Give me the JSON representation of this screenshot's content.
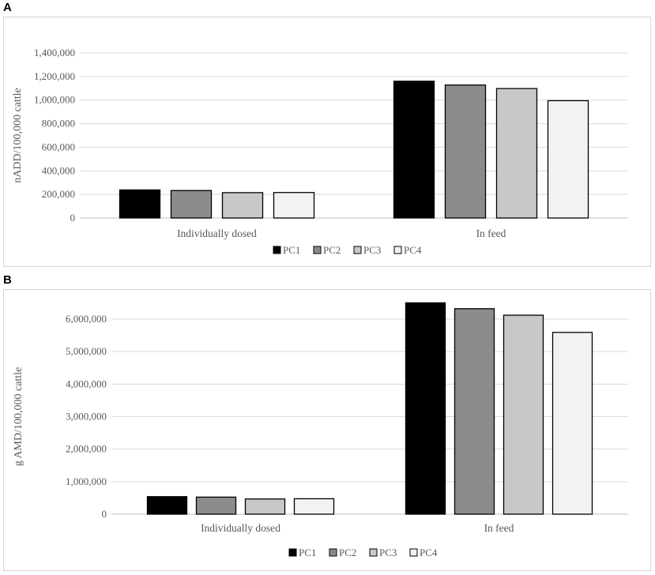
{
  "panels": [
    {
      "letter": "A"
    },
    {
      "letter": "B"
    }
  ],
  "chart_data": [
    {
      "type": "bar",
      "categories": [
        "Individually dosed",
        "In feed"
      ],
      "series": [
        {
          "name": "PC1",
          "values": [
            238000,
            1160000
          ]
        },
        {
          "name": "PC2",
          "values": [
            233000,
            1128000
          ]
        },
        {
          "name": "PC3",
          "values": [
            215000,
            1098000
          ]
        },
        {
          "name": "PC4",
          "values": [
            216000,
            995000
          ]
        }
      ],
      "title": "",
      "xlabel": "",
      "ylabel": "nADD/100,000 cattle",
      "ylim": [
        0,
        1400000
      ],
      "yticks": [
        0,
        200000,
        400000,
        600000,
        800000,
        1000000,
        1200000,
        1400000
      ],
      "ytick_labels": [
        "0",
        "200,000",
        "400,000",
        "600,000",
        "800,000",
        "1,000,000",
        "1,200,000",
        "1,400,000"
      ],
      "grid": true,
      "legend_position": "bottom",
      "colors": [
        "#000000",
        "#8c8c8c",
        "#c8c8c8",
        "#f2f2f2"
      ]
    },
    {
      "type": "bar",
      "categories": [
        "Individually dosed",
        "In feed"
      ],
      "series": [
        {
          "name": "PC1",
          "values": [
            540000,
            6500000
          ]
        },
        {
          "name": "PC2",
          "values": [
            525000,
            6320000
          ]
        },
        {
          "name": "PC3",
          "values": [
            468000,
            6120000
          ]
        },
        {
          "name": "PC4",
          "values": [
            475000,
            5590000
          ]
        }
      ],
      "title": "",
      "xlabel": "",
      "ylabel": "g AMD/100,000 cattle",
      "ylim": [
        0,
        6000000
      ],
      "yticks": [
        0,
        1000000,
        2000000,
        3000000,
        4000000,
        5000000,
        6000000
      ],
      "ytick_labels": [
        "0",
        "1,000,000",
        "2,000,000",
        "3,000,000",
        "4,000,000",
        "5,000,000",
        "6,000,000"
      ],
      "grid": true,
      "legend_position": "bottom",
      "colors": [
        "#000000",
        "#8c8c8c",
        "#c8c8c8",
        "#f2f2f2"
      ]
    }
  ]
}
